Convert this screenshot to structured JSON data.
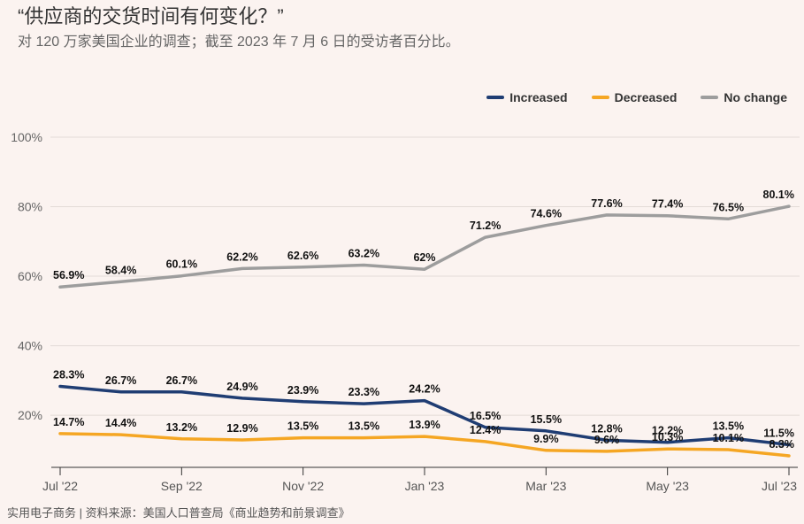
{
  "background_color": "#fbf3f0",
  "footer": {
    "source": "实用电子商务 | 资料来源：美国人口普查局《商业趋势和前景调查》"
  },
  "chart_data": {
    "type": "line",
    "title": "“供应商的交货时间有何变化？”",
    "subtitle": "对 120 万家美国企业的调查；截至 2023 年 7 月 6 日的受访者百分比。",
    "xlabel": "",
    "ylabel": "",
    "x": [
      0,
      1,
      2,
      3,
      4,
      5,
      6,
      7,
      8,
      9,
      10,
      11,
      12
    ],
    "x_ticks": [
      0,
      2,
      4,
      6,
      8,
      10,
      12
    ],
    "x_tick_labels": [
      "Jul '22",
      "Sep '22",
      "Nov '22",
      "Jan '23",
      "Mar '23",
      "May '23",
      "Jul '23"
    ],
    "y_ticks": [
      20,
      40,
      60,
      80,
      100
    ],
    "value_suffix": "%",
    "ylim": [
      5,
      100
    ],
    "grid": true,
    "legend_position": "top-right",
    "series": [
      {
        "name": "Increased",
        "color": "#1f3d73",
        "values": [
          28.3,
          26.7,
          26.7,
          24.9,
          23.9,
          23.3,
          24.2,
          16.5,
          15.5,
          12.8,
          12.2,
          13.5,
          11.5
        ]
      },
      {
        "name": "Decreased",
        "color": "#f5a623",
        "values": [
          14.7,
          14.4,
          13.2,
          12.9,
          13.5,
          13.5,
          13.9,
          12.4,
          9.9,
          9.6,
          10.3,
          10.1,
          8.3
        ]
      },
      {
        "name": "No change",
        "color": "#9d9d9d",
        "values": [
          56.9,
          58.4,
          60.1,
          62.2,
          62.6,
          63.2,
          62,
          71.2,
          74.6,
          77.6,
          77.4,
          76.5,
          80.1
        ]
      }
    ]
  }
}
